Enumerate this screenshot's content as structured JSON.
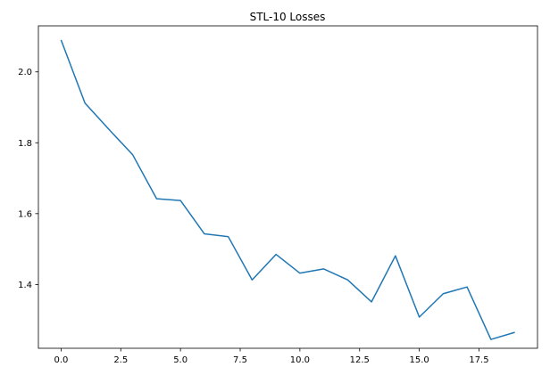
{
  "chart_data": {
    "type": "line",
    "title": "STL-10 Losses",
    "xlabel": "",
    "ylabel": "",
    "xlim": [
      -0.95,
      19.95
    ],
    "ylim": [
      1.22,
      2.13
    ],
    "x_ticks": [
      0.0,
      2.5,
      5.0,
      7.5,
      10.0,
      12.5,
      15.0,
      17.5
    ],
    "x_tick_labels": [
      "0.0",
      "2.5",
      "5.0",
      "7.5",
      "10.0",
      "12.5",
      "15.0",
      "17.5"
    ],
    "y_ticks": [
      1.4,
      1.6,
      1.8,
      2.0
    ],
    "y_tick_labels": [
      "1.4",
      "1.6",
      "1.8",
      "2.0"
    ],
    "grid": false,
    "series": [
      {
        "color": "#1f77b4",
        "x": [
          0,
          1,
          2,
          3,
          4,
          5,
          6,
          7,
          8,
          9,
          10,
          11,
          12,
          13,
          14,
          15,
          16,
          17,
          18,
          19
        ],
        "values": [
          2.09,
          1.912,
          1.838,
          1.766,
          1.642,
          1.637,
          1.543,
          1.535,
          1.413,
          1.485,
          1.432,
          1.444,
          1.413,
          1.351,
          1.481,
          1.308,
          1.374,
          1.393,
          1.245,
          1.265
        ]
      }
    ]
  }
}
